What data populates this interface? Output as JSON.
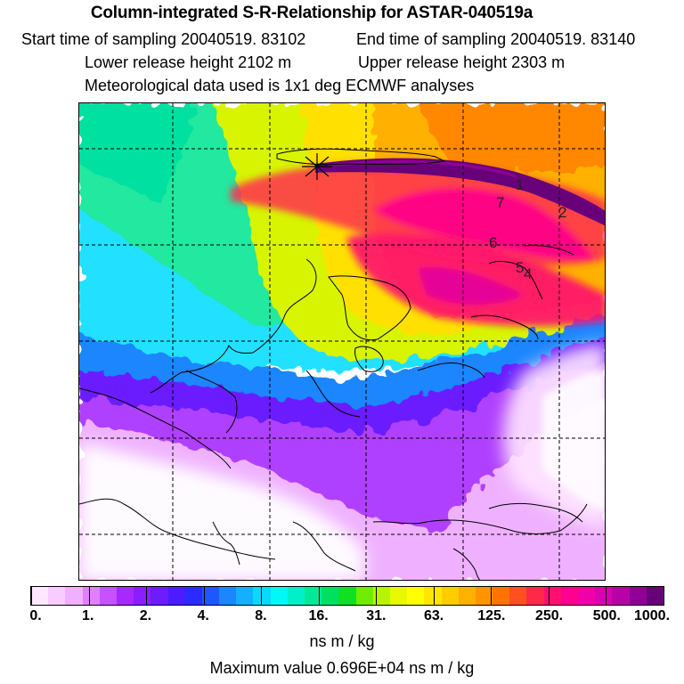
{
  "header": {
    "title": "Column-integrated S-R-Relationship for ASTAR-040519a",
    "start_label": "Start time of sampling 20040519. 83102",
    "end_label": "End time of sampling 20040519. 83140",
    "lower_label": "Lower release height 2102 m",
    "upper_label": "Upper release height 2303 m",
    "met_label": "Meteorological data used is 1x1 deg ECMWF analyses"
  },
  "map": {
    "sample_labels": [
      "1",
      "2",
      "4",
      "5",
      "6",
      "7"
    ]
  },
  "colorbar": {
    "colors": [
      "#ffe8ff",
      "#f8ccff",
      "#f0b0ff",
      "#e080ff",
      "#c850ff",
      "#a828ff",
      "#8a1eff",
      "#6c1cff",
      "#4a1cff",
      "#2a2cff",
      "#1c58ff",
      "#1a86ff",
      "#14b0ff",
      "#0ad8ff",
      "#00f8f8",
      "#00f0c8",
      "#00e898",
      "#00e060",
      "#10e020",
      "#70ec00",
      "#b8f400",
      "#e8f800",
      "#ffff00",
      "#ffe600",
      "#ffcc00",
      "#ffb000",
      "#ff9400",
      "#ff7400",
      "#ff5020",
      "#ff2848",
      "#ff1070",
      "#ff0090",
      "#f000a8",
      "#d800b0",
      "#b800a8",
      "#900098",
      "#68007a"
    ],
    "labels": [
      "0.",
      "1.",
      "2.",
      "4.",
      "8.",
      "16.",
      "31.",
      "63.",
      "125.",
      "250.",
      "500.",
      "1000."
    ],
    "units": "ns m / kg",
    "max_text": "Maximum value  0.696E+04 ns m / kg"
  }
}
